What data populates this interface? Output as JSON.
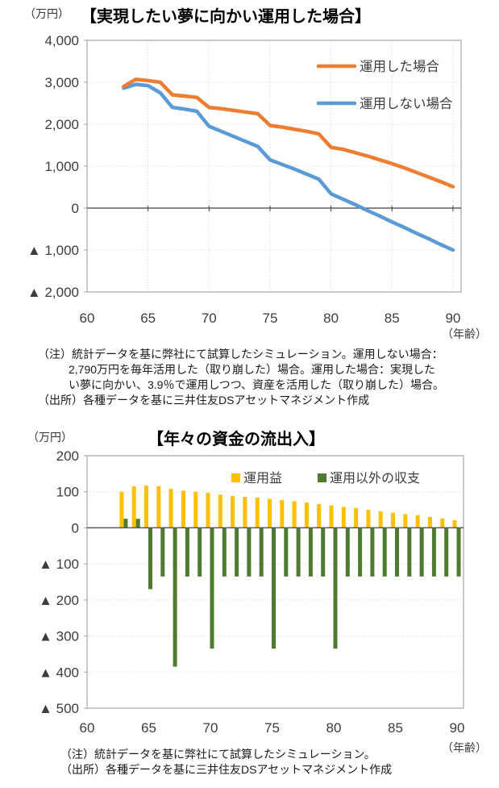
{
  "chart_data": [
    {
      "type": "line",
      "title": "【実現したい夢に向かい運用した場合】",
      "unit_label": "（万円）",
      "age_label": "（年齢）",
      "xlabel": "年齢",
      "ylabel": "万円",
      "xlim": [
        60,
        90
      ],
      "ylim": [
        -2000,
        4000
      ],
      "grid": true,
      "legend_position": "top-right-inside",
      "x_tick_values": [
        60,
        65,
        70,
        75,
        80,
        85,
        90
      ],
      "x_tick_labels": [
        "60",
        "65",
        "70",
        "75",
        "80",
        "85",
        "90"
      ],
      "y_tick_values": [
        4000,
        3000,
        2000,
        1000,
        0,
        -1000,
        -2000
      ],
      "y_tick_labels": [
        "4,000",
        "3,000",
        "2,000",
        "1,000",
        "0",
        "▲ 1,000",
        "▲ 2,000"
      ],
      "ages": [
        63,
        64,
        65,
        66,
        67,
        68,
        69,
        70,
        71,
        72,
        73,
        74,
        75,
        76,
        77,
        78,
        79,
        80,
        81,
        82,
        83,
        84,
        85,
        86,
        87,
        88,
        89,
        90
      ],
      "series": [
        {
          "name": "運用した場合",
          "color": "#ED7D31",
          "values": [
            2900,
            3070,
            3040,
            3000,
            2700,
            2670,
            2640,
            2400,
            2370,
            2330,
            2290,
            2250,
            1970,
            1930,
            1880,
            1830,
            1770,
            1450,
            1400,
            1320,
            1240,
            1150,
            1060,
            960,
            850,
            740,
            630,
            510
          ]
        },
        {
          "name": "運用しない場合",
          "color": "#5B9BD5",
          "values": [
            2860,
            2950,
            2920,
            2750,
            2400,
            2360,
            2310,
            1950,
            1830,
            1710,
            1590,
            1470,
            1150,
            1040,
            930,
            810,
            690,
            340,
            210,
            80,
            -60,
            -190,
            -330,
            -460,
            -600,
            -730,
            -870,
            -1000
          ]
        }
      ],
      "notes": [
        "（注）統計データを基に弊社にて試算したシミュレーション。運用しない場合：",
        "2,790万円を毎年活用した（取り崩した）場合。運用した場合：実現した",
        "い夢に向かい、3.9％で運用しつつ、資産を活用した（取り崩した）場合。",
        "（出所）各種データを基に三井住友DSアセットマネジメント作成"
      ]
    },
    {
      "type": "bar",
      "title": "【年々の資金の流出入】",
      "unit_label": "（万円）",
      "age_label": "（年齢）",
      "xlabel": "年齢",
      "ylabel": "万円",
      "xlim": [
        60,
        90
      ],
      "ylim": [
        -500,
        200
      ],
      "grid": true,
      "legend_position": "top-inside",
      "x_tick_values": [
        60,
        65,
        70,
        75,
        80,
        85,
        90
      ],
      "x_tick_labels": [
        "60",
        "65",
        "70",
        "75",
        "80",
        "85",
        "90"
      ],
      "y_tick_values": [
        200,
        100,
        0,
        -100,
        -200,
        -300,
        -400,
        -500
      ],
      "y_tick_labels": [
        "200",
        "100",
        "0",
        "▲ 100",
        "▲ 200",
        "▲ 300",
        "▲ 400",
        "▲ 500"
      ],
      "ages": [
        63,
        64,
        65,
        66,
        67,
        68,
        69,
        70,
        71,
        72,
        73,
        74,
        75,
        76,
        77,
        78,
        79,
        80,
        81,
        82,
        83,
        84,
        85,
        86,
        87,
        88,
        89,
        90
      ],
      "series": [
        {
          "name": "運用益",
          "color": "#FFC000",
          "values": [
            100,
            115,
            117,
            115,
            108,
            103,
            100,
            97,
            92,
            88,
            86,
            84,
            80,
            77,
            74,
            70,
            66,
            62,
            58,
            55,
            50,
            46,
            42,
            38,
            35,
            30,
            26,
            21
          ]
        },
        {
          "name": "運用以外の収支",
          "color": "#4E7B2F",
          "values": [
            25,
            25,
            -170,
            -135,
            -385,
            -135,
            -135,
            -335,
            -135,
            -135,
            -135,
            -135,
            -335,
            -135,
            -135,
            -135,
            -135,
            -335,
            -135,
            -135,
            -135,
            -135,
            -135,
            -135,
            -135,
            -135,
            -135,
            -135
          ]
        }
      ],
      "notes": [
        "（注）統計データを基に弊社にて試算したシミュレーション。",
        "（出所）各種データを基に三井住友DSアセットマネジメント作成"
      ]
    }
  ],
  "style": {
    "grid_color": "#D9D9D9",
    "frame_color": "#A6A6A6",
    "zero_line_color": "#404040",
    "tick_text_color": "#3d3d3d"
  }
}
